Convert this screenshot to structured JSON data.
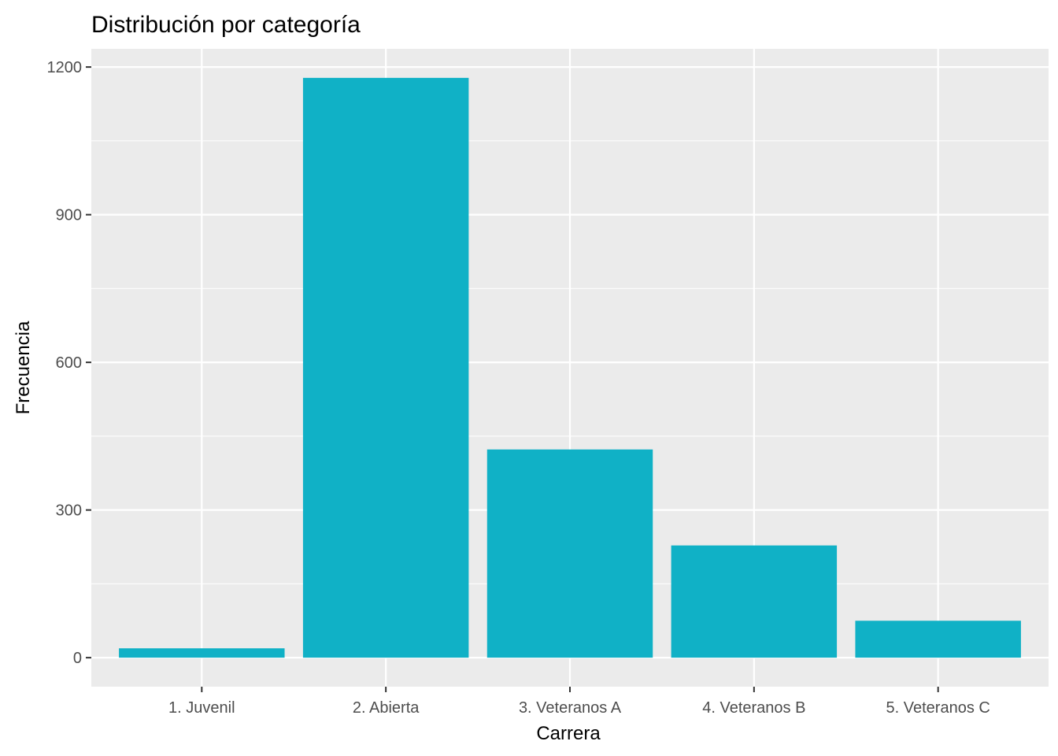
{
  "chart_data": {
    "type": "bar",
    "title": "Distribución por categoría",
    "xlabel": "Carrera",
    "ylabel": "Frecuencia",
    "categories": [
      "1. Juvenil",
      "2. Abierta",
      "3. Veteranos A",
      "4. Veteranos B",
      "5. Veteranos C"
    ],
    "values": [
      19,
      1178,
      423,
      228,
      75
    ],
    "ylim": [
      -59,
      1237
    ],
    "yticks": [
      0,
      300,
      600,
      900,
      1200
    ],
    "ytick_labels": [
      "0",
      "300",
      "600",
      "900",
      "1200"
    ],
    "grid": true,
    "legend": "none",
    "colors": {
      "bar": "#10b1c6",
      "panel": "#ebebeb",
      "grid": "#ffffff",
      "tick": "#333333"
    }
  }
}
